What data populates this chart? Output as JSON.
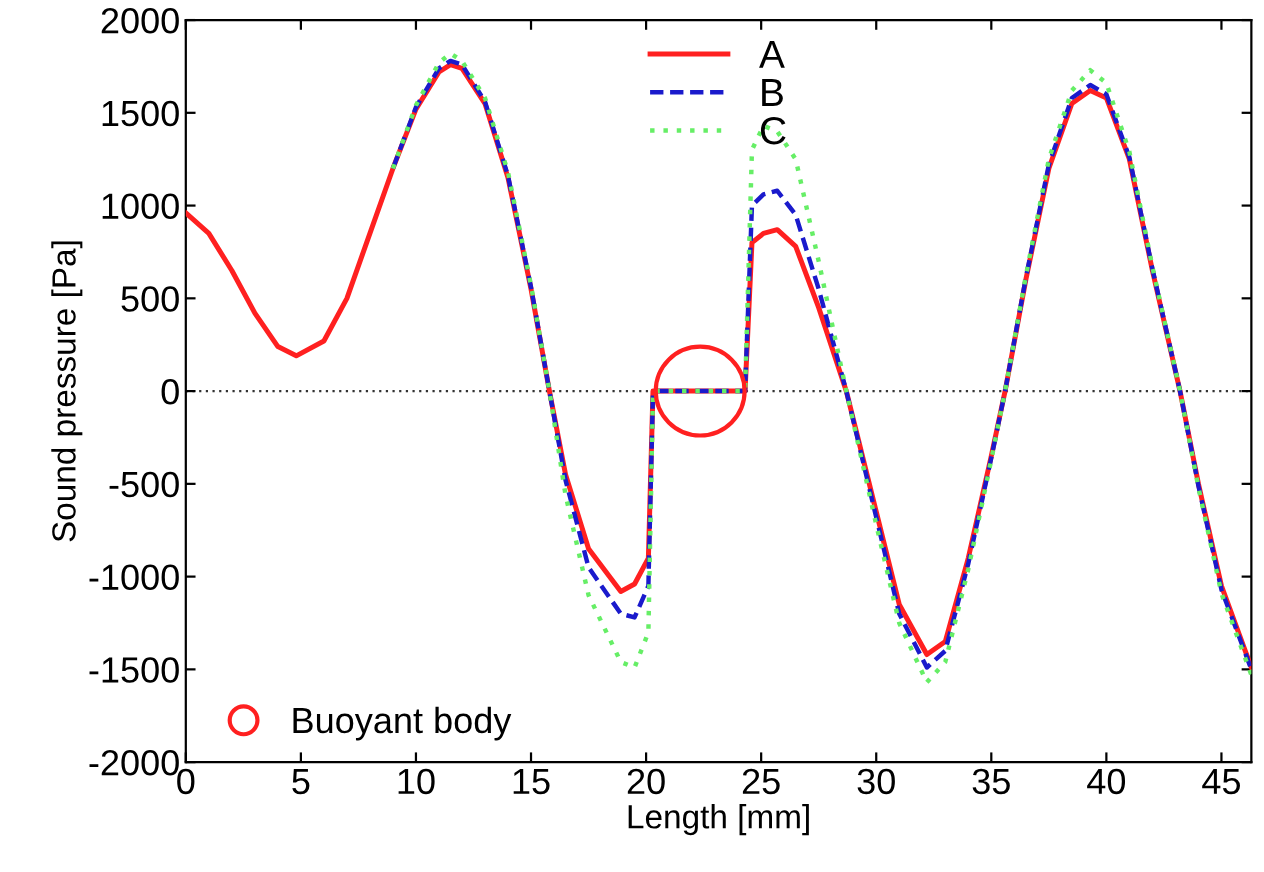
{
  "chart_data": {
    "type": "line",
    "xlabel": "Length [mm]",
    "ylabel": "Sound pressure [Pa]",
    "x": [
      0,
      1,
      2,
      3,
      4,
      4.8,
      6,
      7,
      8,
      9,
      10,
      11,
      11.5,
      12,
      13,
      14,
      15,
      15.8,
      16.5,
      17.5,
      18.9,
      19.5,
      20.1,
      20.3,
      24.3,
      24.6,
      25.1,
      25.7,
      26.5,
      27.5,
      28.7,
      30,
      31,
      32.2,
      33,
      34,
      35,
      35.6,
      36.5,
      37.5,
      38.5,
      39.3,
      40,
      41,
      42,
      43.2,
      44,
      45,
      46.3
    ],
    "series": [
      {
        "name": "A",
        "color": "#ff2020",
        "line_style": "solid",
        "values": [
          960,
          850,
          650,
          420,
          240,
          190,
          270,
          500,
          850,
          1200,
          1520,
          1720,
          1760,
          1740,
          1550,
          1150,
          550,
          0,
          -450,
          -850,
          -1080,
          -1040,
          -900,
          0,
          0,
          800,
          850,
          870,
          780,
          450,
          0,
          -650,
          -1150,
          -1420,
          -1350,
          -900,
          -350,
          0,
          600,
          1200,
          1550,
          1620,
          1580,
          1250,
          650,
          0,
          -500,
          -1050,
          -1490
        ]
      },
      {
        "name": "B",
        "color": "#1a1acc",
        "line_style": "dashed",
        "values": [
          null,
          null,
          null,
          null,
          null,
          null,
          null,
          null,
          null,
          1200,
          1530,
          1740,
          1780,
          1760,
          1560,
          1160,
          560,
          0,
          -480,
          -950,
          -1200,
          -1220,
          -1050,
          0,
          0,
          1000,
          1060,
          1080,
          950,
          550,
          0,
          -680,
          -1200,
          -1490,
          -1400,
          -930,
          -360,
          0,
          610,
          1220,
          1580,
          1650,
          1600,
          1260,
          660,
          0,
          -510,
          -1070,
          -1500
        ]
      },
      {
        "name": "C",
        "color": "#66ee66",
        "line_style": "dotted",
        "values": [
          null,
          null,
          null,
          null,
          null,
          null,
          null,
          null,
          null,
          1200,
          1540,
          1770,
          1820,
          1780,
          1580,
          1180,
          570,
          0,
          -560,
          -1100,
          -1460,
          -1490,
          -1300,
          0,
          0,
          1300,
          1430,
          1400,
          1250,
          700,
          0,
          -720,
          -1250,
          -1570,
          -1460,
          -960,
          -370,
          0,
          620,
          1250,
          1620,
          1730,
          1660,
          1290,
          670,
          0,
          -520,
          -1090,
          -1530
        ]
      },
      {
        "name": "Buoyant body",
        "type": "scatter",
        "marker": "circle",
        "color": "#ff2020",
        "x": [
          22.35
        ],
        "values": [
          0
        ]
      }
    ],
    "xlim": [
      0,
      46.3
    ],
    "ylim": [
      -2000,
      2000
    ],
    "xticks": [
      0,
      5,
      10,
      15,
      20,
      25,
      30,
      35,
      40,
      45
    ],
    "yticks": [
      -2000,
      -1500,
      -1000,
      -500,
      0,
      500,
      1000,
      1500,
      2000
    ],
    "ref_lines": [
      {
        "axis": "y",
        "value": 0,
        "color": "#333333",
        "line_style": "dotted"
      }
    ],
    "grid": false,
    "legend": "top"
  }
}
